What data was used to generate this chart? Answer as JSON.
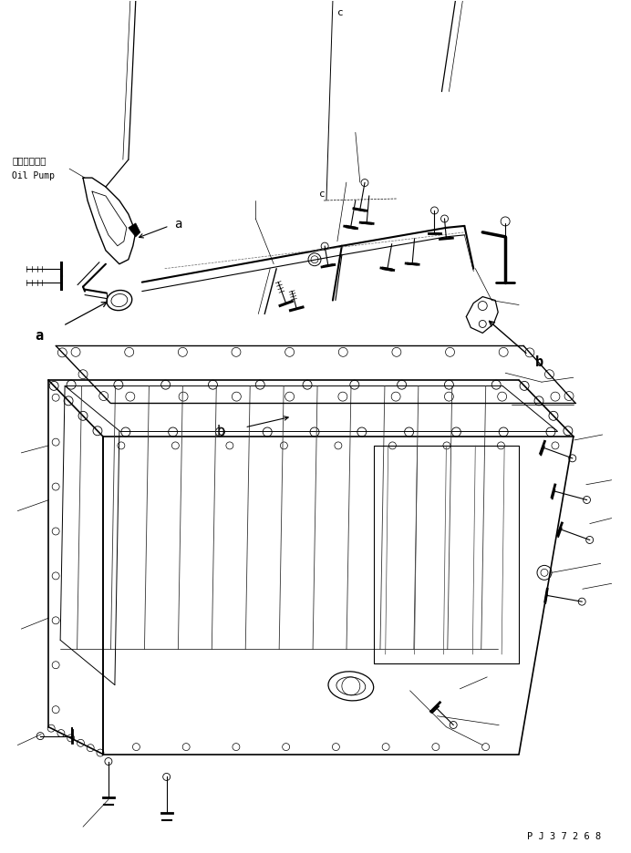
{
  "background_color": "#ffffff",
  "line_color": "#000000",
  "label_oil_pump_jp": "オイルポンプ",
  "label_oil_pump_en": "Oil Pump",
  "part_number": "P J 3 7 2 6 8",
  "fig_width": 6.92,
  "fig_height": 9.37,
  "dpi": 100
}
